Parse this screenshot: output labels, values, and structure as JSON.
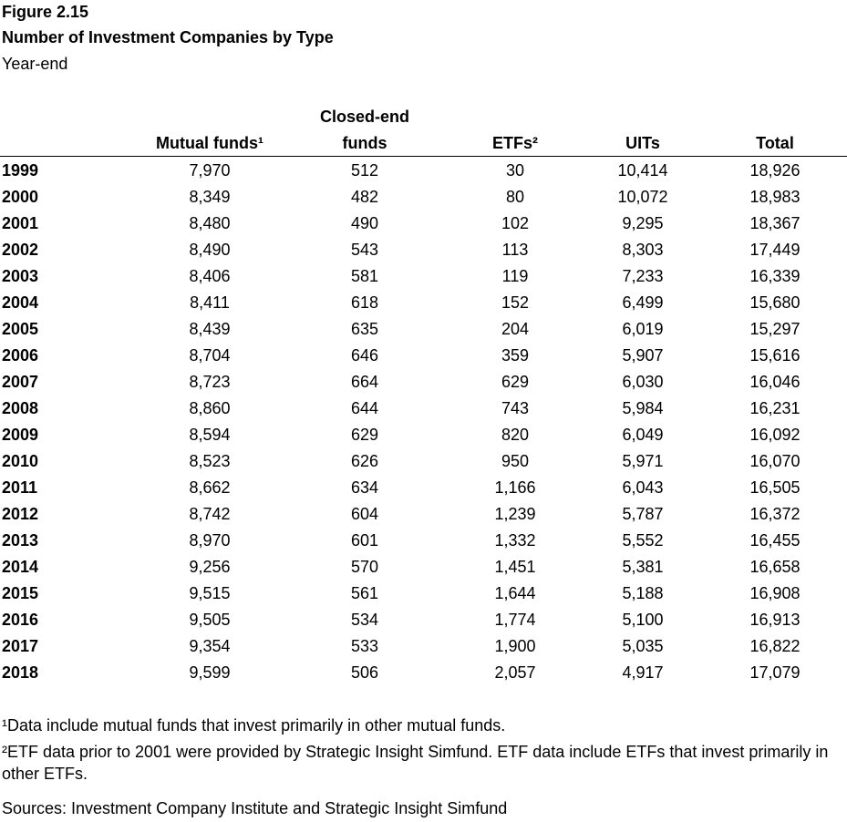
{
  "figure": {
    "label": "Figure 2.15",
    "title": "Number of Investment Companies by Type",
    "subtitle": "Year-end"
  },
  "columns": {
    "mutual_funds": "Mutual funds¹",
    "closed_end_line1": "Closed-end",
    "closed_end_line2": "funds",
    "etfs": "ETFs²",
    "uits": "UITs",
    "total": "Total"
  },
  "rows": [
    {
      "year": "1999",
      "mutual_funds": "7,970",
      "closed_end": "512",
      "etfs": "30",
      "uits": "10,414",
      "total": "18,926"
    },
    {
      "year": "2000",
      "mutual_funds": "8,349",
      "closed_end": "482",
      "etfs": "80",
      "uits": "10,072",
      "total": "18,983"
    },
    {
      "year": "2001",
      "mutual_funds": "8,480",
      "closed_end": "490",
      "etfs": "102",
      "uits": "9,295",
      "total": "18,367"
    },
    {
      "year": "2002",
      "mutual_funds": "8,490",
      "closed_end": "543",
      "etfs": "113",
      "uits": "8,303",
      "total": "17,449"
    },
    {
      "year": "2003",
      "mutual_funds": "8,406",
      "closed_end": "581",
      "etfs": "119",
      "uits": "7,233",
      "total": "16,339"
    },
    {
      "year": "2004",
      "mutual_funds": "8,411",
      "closed_end": "618",
      "etfs": "152",
      "uits": "6,499",
      "total": "15,680"
    },
    {
      "year": "2005",
      "mutual_funds": "8,439",
      "closed_end": "635",
      "etfs": "204",
      "uits": "6,019",
      "total": "15,297"
    },
    {
      "year": "2006",
      "mutual_funds": "8,704",
      "closed_end": "646",
      "etfs": "359",
      "uits": "5,907",
      "total": "15,616"
    },
    {
      "year": "2007",
      "mutual_funds": "8,723",
      "closed_end": "664",
      "etfs": "629",
      "uits": "6,030",
      "total": "16,046"
    },
    {
      "year": "2008",
      "mutual_funds": "8,860",
      "closed_end": "644",
      "etfs": "743",
      "uits": "5,984",
      "total": "16,231"
    },
    {
      "year": "2009",
      "mutual_funds": "8,594",
      "closed_end": "629",
      "etfs": "820",
      "uits": "6,049",
      "total": "16,092"
    },
    {
      "year": "2010",
      "mutual_funds": "8,523",
      "closed_end": "626",
      "etfs": "950",
      "uits": "5,971",
      "total": "16,070"
    },
    {
      "year": "2011",
      "mutual_funds": "8,662",
      "closed_end": "634",
      "etfs": "1,166",
      "uits": "6,043",
      "total": "16,505"
    },
    {
      "year": "2012",
      "mutual_funds": "8,742",
      "closed_end": "604",
      "etfs": "1,239",
      "uits": "5,787",
      "total": "16,372"
    },
    {
      "year": "2013",
      "mutual_funds": "8,970",
      "closed_end": "601",
      "etfs": "1,332",
      "uits": "5,552",
      "total": "16,455"
    },
    {
      "year": "2014",
      "mutual_funds": "9,256",
      "closed_end": "570",
      "etfs": "1,451",
      "uits": "5,381",
      "total": "16,658"
    },
    {
      "year": "2015",
      "mutual_funds": "9,515",
      "closed_end": "561",
      "etfs": "1,644",
      "uits": "5,188",
      "total": "16,908"
    },
    {
      "year": "2016",
      "mutual_funds": "9,505",
      "closed_end": "534",
      "etfs": "1,774",
      "uits": "5,100",
      "total": "16,913"
    },
    {
      "year": "2017",
      "mutual_funds": "9,354",
      "closed_end": "533",
      "etfs": "1,900",
      "uits": "5,035",
      "total": "16,822"
    },
    {
      "year": "2018",
      "mutual_funds": "9,599",
      "closed_end": "506",
      "etfs": "2,057",
      "uits": "4,917",
      "total": "17,079"
    }
  ],
  "notes": {
    "note1": "¹Data include mutual funds that invest primarily in other mutual funds.",
    "note2": "²ETF data prior to 2001 were provided by Strategic Insight Simfund. ETF data include ETFs that invest primarily in other ETFs.",
    "sources": "Sources: Investment Company Institute and Strategic Insight Simfund"
  }
}
